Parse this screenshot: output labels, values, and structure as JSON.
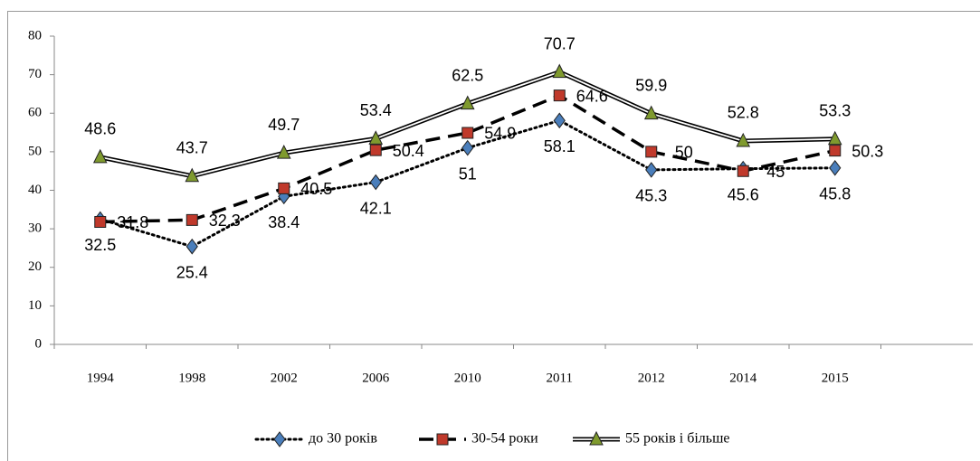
{
  "chart_data": {
    "type": "line",
    "categories": [
      "1994",
      "1998",
      "2002",
      "2006",
      "2010",
      "2011",
      "2012",
      "2014",
      "2015",
      null
    ],
    "ylim": [
      0,
      80
    ],
    "yticks": [
      0,
      10,
      20,
      30,
      40,
      50,
      60,
      70,
      80
    ],
    "series": [
      {
        "name": "до 30 років",
        "color": "#4a7ebb",
        "line_style": "dotted",
        "marker": "diamond",
        "values": [
          32.5,
          25.4,
          38.4,
          42.1,
          51,
          58.1,
          45.3,
          45.6,
          45.8,
          null
        ]
      },
      {
        "name": "30-54 роки",
        "color": "#c0392b",
        "line_style": "dashed",
        "marker": "square",
        "values": [
          31.8,
          32.3,
          40.5,
          50.4,
          54.9,
          64.6,
          50,
          45,
          50.3,
          null
        ]
      },
      {
        "name": "55 років і більше",
        "color": "#7f9a2e",
        "line_style": "double",
        "marker": "triangle",
        "values": [
          48.6,
          43.7,
          49.7,
          53.4,
          62.5,
          70.7,
          59.9,
          52.8,
          53.3,
          null
        ]
      }
    ]
  }
}
